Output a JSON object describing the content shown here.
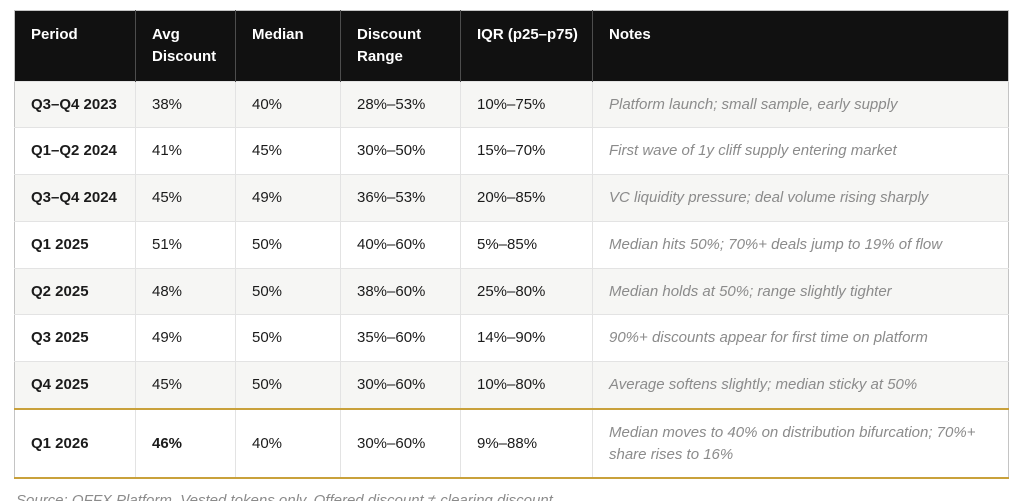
{
  "colors": {
    "accent_gold": "#C9A13B",
    "header_background": "#111111",
    "zebra_row": "#F6F6F4",
    "notes_text": "#8B8B8B"
  },
  "table": {
    "columns": [
      {
        "key": "period",
        "label": "Period"
      },
      {
        "key": "avg",
        "label": "Avg Discount"
      },
      {
        "key": "median",
        "label": "Median"
      },
      {
        "key": "range",
        "label": "Discount Range"
      },
      {
        "key": "iqr",
        "label": "IQR (p25–p75)"
      },
      {
        "key": "note",
        "label": "Notes"
      }
    ],
    "rows": [
      {
        "period": "Q3–Q4 2023",
        "avg": "38%",
        "median": "40%",
        "range": "28%–53%",
        "iqr": "10%–75%",
        "note": "Platform launch; small sample, early supply",
        "emphasis": false
      },
      {
        "period": "Q1–Q2 2024",
        "avg": "41%",
        "median": "45%",
        "range": "30%–50%",
        "iqr": "15%–70%",
        "note": "First wave of 1y cliff supply entering market",
        "emphasis": false
      },
      {
        "period": "Q3–Q4 2024",
        "avg": "45%",
        "median": "49%",
        "range": "36%–53%",
        "iqr": "20%–85%",
        "note": "VC liquidity pressure; deal volume rising sharply",
        "emphasis": false
      },
      {
        "period": "Q1 2025",
        "avg": "51%",
        "median": "50%",
        "range": "40%–60%",
        "iqr": "5%–85%",
        "note": "Median hits 50%; 70%+ deals jump to 19% of flow",
        "emphasis": false
      },
      {
        "period": "Q2 2025",
        "avg": "48%",
        "median": "50%",
        "range": "38%–60%",
        "iqr": "25%–80%",
        "note": "Median holds at 50%; range slightly tighter",
        "emphasis": false
      },
      {
        "period": "Q3 2025",
        "avg": "49%",
        "median": "50%",
        "range": "35%–60%",
        "iqr": "14%–90%",
        "note": "90%+ discounts appear for first time on platform",
        "emphasis": false
      },
      {
        "period": "Q4 2025",
        "avg": "45%",
        "median": "50%",
        "range": "30%–60%",
        "iqr": "10%–80%",
        "note": "Average softens slightly; median sticky at 50%",
        "emphasis": false
      },
      {
        "period": "Q1 2026",
        "avg": "46%",
        "median": "40%",
        "range": "30%–60%",
        "iqr": "9%–88%",
        "note": "Median moves to 40% on distribution bifurcation; 70%+ share rises to 16%",
        "emphasis": true
      }
    ]
  },
  "footer": {
    "source": "Source: OFFX Platform. Vested tokens only. Offered discount ≠ clearing discount."
  }
}
